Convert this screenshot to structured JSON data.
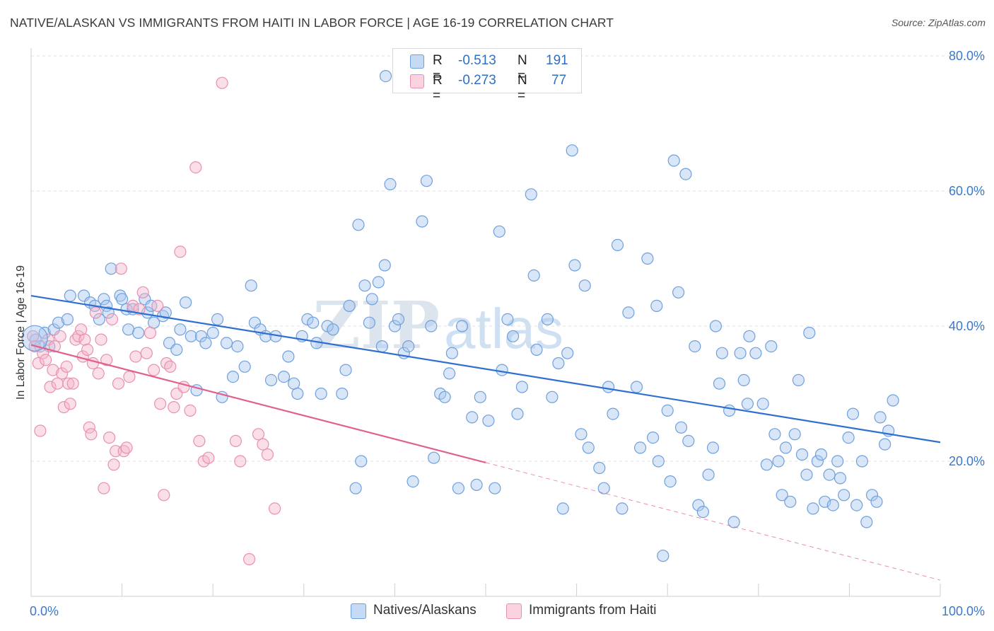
{
  "header": {
    "title": "NATIVE/ALASKAN VS IMMIGRANTS FROM HAITI IN LABOR FORCE | AGE 16-19 CORRELATION CHART",
    "source": "Source: ZipAtlas.com"
  },
  "legend": {
    "r_label": "R =",
    "n_label": "N =",
    "rows": [
      {
        "r": "-0.513",
        "n": "191",
        "color": "#a9c8f0"
      },
      {
        "r": "-0.273",
        "n": "77",
        "color": "#f5b8cc"
      }
    ]
  },
  "watermark": {
    "zip": "ZIP",
    "atlas": "atlas"
  },
  "chart_data": {
    "type": "scatter",
    "ylabel": "In Labor Force | Age 16-19",
    "xlim": [
      0,
      100
    ],
    "ylim": [
      0,
      82
    ],
    "x_tick_labels": [
      "0.0%",
      "100.0%"
    ],
    "y_ticks": [
      20,
      40,
      60,
      80
    ],
    "y_tick_labels": [
      "20.0%",
      "40.0%",
      "60.0%",
      "80.0%"
    ],
    "grid": "horizontal-dashed",
    "series": [
      {
        "name": "Natives/Alaskans",
        "color": "#6fa0dc",
        "fill": "#a9c8f0",
        "trend": {
          "x": [
            0,
            100
          ],
          "y": [
            44.5,
            22.8
          ],
          "dash_after": null
        },
        "points": [
          [
            0.5,
            38
          ],
          [
            1,
            37
          ],
          [
            1.5,
            39
          ],
          [
            2,
            37
          ],
          [
            2.5,
            39.5
          ],
          [
            3,
            40.5
          ],
          [
            4,
            41
          ],
          [
            4.3,
            44.5
          ],
          [
            5.8,
            44.5
          ],
          [
            6.5,
            43.5
          ],
          [
            7,
            43
          ],
          [
            7.5,
            41
          ],
          [
            8,
            44
          ],
          [
            8.3,
            43
          ],
          [
            8.5,
            42
          ],
          [
            8.8,
            48.5
          ],
          [
            9.8,
            44.5
          ],
          [
            10,
            44
          ],
          [
            10.5,
            42.5
          ],
          [
            10.7,
            39.5
          ],
          [
            11.2,
            42.5
          ],
          [
            11.8,
            39
          ],
          [
            12.5,
            44
          ],
          [
            12.8,
            42
          ],
          [
            13.2,
            43
          ],
          [
            13.5,
            40.5
          ],
          [
            14.5,
            41.5
          ],
          [
            14.8,
            42
          ],
          [
            15.2,
            37.5
          ],
          [
            16,
            36.5
          ],
          [
            16.4,
            39.5
          ],
          [
            17,
            43.5
          ],
          [
            17.6,
            38.5
          ],
          [
            18.2,
            30.5
          ],
          [
            18.7,
            38.5
          ],
          [
            19.2,
            37.5
          ],
          [
            20,
            39
          ],
          [
            20.5,
            41
          ],
          [
            21,
            29.5
          ],
          [
            21.5,
            37.5
          ],
          [
            22.2,
            32.5
          ],
          [
            22.7,
            37
          ],
          [
            23.5,
            34
          ],
          [
            24.2,
            46
          ],
          [
            24.6,
            40.5
          ],
          [
            25.2,
            39.5
          ],
          [
            25.8,
            38.5
          ],
          [
            26.4,
            32
          ],
          [
            26.9,
            38.5
          ],
          [
            27.8,
            32.5
          ],
          [
            28.3,
            35.5
          ],
          [
            28.9,
            31.5
          ],
          [
            29.3,
            30
          ],
          [
            29.8,
            38.5
          ],
          [
            30.4,
            41
          ],
          [
            31,
            40.5
          ],
          [
            31.4,
            37.5
          ],
          [
            31.9,
            30
          ],
          [
            32.6,
            40
          ],
          [
            33.2,
            39.5
          ],
          [
            34.2,
            30
          ],
          [
            34.6,
            33.5
          ],
          [
            35,
            43
          ],
          [
            35.7,
            16
          ],
          [
            36,
            55
          ],
          [
            36.3,
            20
          ],
          [
            36.7,
            46
          ],
          [
            37.2,
            40.5
          ],
          [
            37.5,
            44
          ],
          [
            38.2,
            46.5
          ],
          [
            38.6,
            37
          ],
          [
            38.9,
            49
          ],
          [
            39,
            77
          ],
          [
            39.5,
            61
          ],
          [
            40,
            40
          ],
          [
            40.4,
            41
          ],
          [
            41,
            36
          ],
          [
            41.5,
            37
          ],
          [
            42,
            17
          ],
          [
            43,
            55.5
          ],
          [
            43.5,
            61.5
          ],
          [
            44,
            40
          ],
          [
            44.3,
            20.5
          ],
          [
            45,
            30
          ],
          [
            45.5,
            29.5
          ],
          [
            46,
            33
          ],
          [
            46.3,
            36
          ],
          [
            47,
            16
          ],
          [
            47.4,
            40
          ],
          [
            48.5,
            26.5
          ],
          [
            49,
            16.5
          ],
          [
            49.4,
            29.5
          ],
          [
            50.3,
            26
          ],
          [
            51,
            16
          ],
          [
            51.5,
            54
          ],
          [
            51.8,
            33.5
          ],
          [
            52.4,
            41
          ],
          [
            53,
            38.5
          ],
          [
            53.5,
            27
          ],
          [
            54,
            31
          ],
          [
            55,
            59.5
          ],
          [
            55.3,
            47.5
          ],
          [
            55.6,
            36.5
          ],
          [
            56.8,
            41
          ],
          [
            57.3,
            29.5
          ],
          [
            58,
            34.5
          ],
          [
            58.5,
            13
          ],
          [
            59,
            36
          ],
          [
            59.5,
            66
          ],
          [
            59.8,
            49
          ],
          [
            60.5,
            24
          ],
          [
            60.9,
            46
          ],
          [
            61.3,
            22
          ],
          [
            62.5,
            19
          ],
          [
            63,
            16
          ],
          [
            63.5,
            31
          ],
          [
            64,
            27
          ],
          [
            64.5,
            52
          ],
          [
            65,
            13
          ],
          [
            65.7,
            42
          ],
          [
            66.6,
            31
          ],
          [
            67,
            22
          ],
          [
            67.8,
            50
          ],
          [
            68.4,
            23.5
          ],
          [
            68.8,
            43
          ],
          [
            69,
            20
          ],
          [
            69.5,
            6
          ],
          [
            70,
            27.5
          ],
          [
            70.3,
            17
          ],
          [
            70.7,
            64.5
          ],
          [
            71.2,
            45
          ],
          [
            71.5,
            25
          ],
          [
            72,
            62.5
          ],
          [
            72.3,
            23
          ],
          [
            73,
            37
          ],
          [
            73.4,
            13.5
          ],
          [
            73.9,
            12.5
          ],
          [
            74.5,
            18
          ],
          [
            75,
            22
          ],
          [
            75.3,
            40
          ],
          [
            75.7,
            31.5
          ],
          [
            76,
            36
          ],
          [
            76.8,
            27.5
          ],
          [
            77.3,
            11
          ],
          [
            78,
            36
          ],
          [
            78.4,
            32
          ],
          [
            78.8,
            28.5
          ],
          [
            79,
            38.5
          ],
          [
            79.7,
            36
          ],
          [
            80.5,
            28.5
          ],
          [
            80.9,
            19.5
          ],
          [
            81.4,
            37
          ],
          [
            81.8,
            24
          ],
          [
            82.2,
            20
          ],
          [
            82.6,
            15
          ],
          [
            83,
            22
          ],
          [
            83.5,
            14
          ],
          [
            84,
            24
          ],
          [
            84.4,
            32
          ],
          [
            84.8,
            21
          ],
          [
            85.3,
            18
          ],
          [
            85.6,
            39
          ],
          [
            86,
            13
          ],
          [
            86.5,
            20
          ],
          [
            86.9,
            21
          ],
          [
            87.3,
            14
          ],
          [
            87.8,
            18
          ],
          [
            88.2,
            13.5
          ],
          [
            88.7,
            20
          ],
          [
            89,
            17.5
          ],
          [
            89.4,
            15
          ],
          [
            89.9,
            23.5
          ],
          [
            90.4,
            27
          ],
          [
            90.8,
            13.5
          ],
          [
            91.4,
            20
          ],
          [
            91.9,
            11
          ],
          [
            92.5,
            15
          ],
          [
            93,
            14
          ],
          [
            93.4,
            26.5
          ],
          [
            93.9,
            22.5
          ],
          [
            94.3,
            24.5
          ],
          [
            94.8,
            29
          ]
        ]
      },
      {
        "name": "Immigrants from Haiti",
        "color": "#e890b0",
        "fill": "#f5b8cc",
        "trend": {
          "x": [
            0,
            100
          ],
          "y": [
            37.2,
            2.4
          ],
          "dash_after": 50
        },
        "points": [
          [
            0.2,
            38.5
          ],
          [
            0.4,
            37
          ],
          [
            0.8,
            34.5
          ],
          [
            1,
            24.5
          ],
          [
            1.3,
            36
          ],
          [
            1.6,
            35
          ],
          [
            1.9,
            38
          ],
          [
            2.1,
            31
          ],
          [
            2.4,
            33.5
          ],
          [
            2.6,
            37
          ],
          [
            2.9,
            31.5
          ],
          [
            3.2,
            38.5
          ],
          [
            3.4,
            33
          ],
          [
            3.6,
            28
          ],
          [
            3.9,
            34
          ],
          [
            4.1,
            31.5
          ],
          [
            4.3,
            28.5
          ],
          [
            4.6,
            31.5
          ],
          [
            4.9,
            38
          ],
          [
            5.2,
            38.5
          ],
          [
            5.5,
            39.5
          ],
          [
            5.7,
            35.5
          ],
          [
            5.9,
            38
          ],
          [
            6.2,
            36.5
          ],
          [
            6.4,
            25
          ],
          [
            6.6,
            24
          ],
          [
            6.8,
            34.5
          ],
          [
            7.1,
            42
          ],
          [
            7.4,
            33
          ],
          [
            7.7,
            38
          ],
          [
            8,
            16
          ],
          [
            8.3,
            35
          ],
          [
            8.6,
            23.5
          ],
          [
            8.9,
            41
          ],
          [
            9.1,
            19.5
          ],
          [
            9.3,
            21.5
          ],
          [
            9.6,
            31.5
          ],
          [
            9.9,
            48.5
          ],
          [
            10.2,
            21.5
          ],
          [
            10.5,
            22
          ],
          [
            10.8,
            32.5
          ],
          [
            11.2,
            43
          ],
          [
            11.5,
            35.5
          ],
          [
            11.9,
            42.5
          ],
          [
            12.3,
            45
          ],
          [
            12.7,
            36
          ],
          [
            13.1,
            39
          ],
          [
            13.5,
            33.5
          ],
          [
            13.9,
            43
          ],
          [
            14.2,
            28.5
          ],
          [
            14.6,
            15
          ],
          [
            14.9,
            34.5
          ],
          [
            15.3,
            34
          ],
          [
            15.7,
            28
          ],
          [
            16,
            30
          ],
          [
            16.4,
            51
          ],
          [
            16.8,
            31
          ],
          [
            17.5,
            27.5
          ],
          [
            18.1,
            63.5
          ],
          [
            18.5,
            23
          ],
          [
            19,
            20
          ],
          [
            19.5,
            20.5
          ],
          [
            21,
            76
          ],
          [
            22.5,
            23
          ],
          [
            23,
            20
          ],
          [
            24,
            5.5
          ],
          [
            25,
            24
          ],
          [
            25.5,
            22.5
          ],
          [
            26,
            21
          ],
          [
            26.8,
            13
          ]
        ]
      }
    ]
  },
  "bottom_legend": [
    {
      "label": "Natives/Alaskans",
      "color": "#a9c8f0"
    },
    {
      "label": "Immigrants from Haiti",
      "color": "#f5b8cc"
    }
  ]
}
